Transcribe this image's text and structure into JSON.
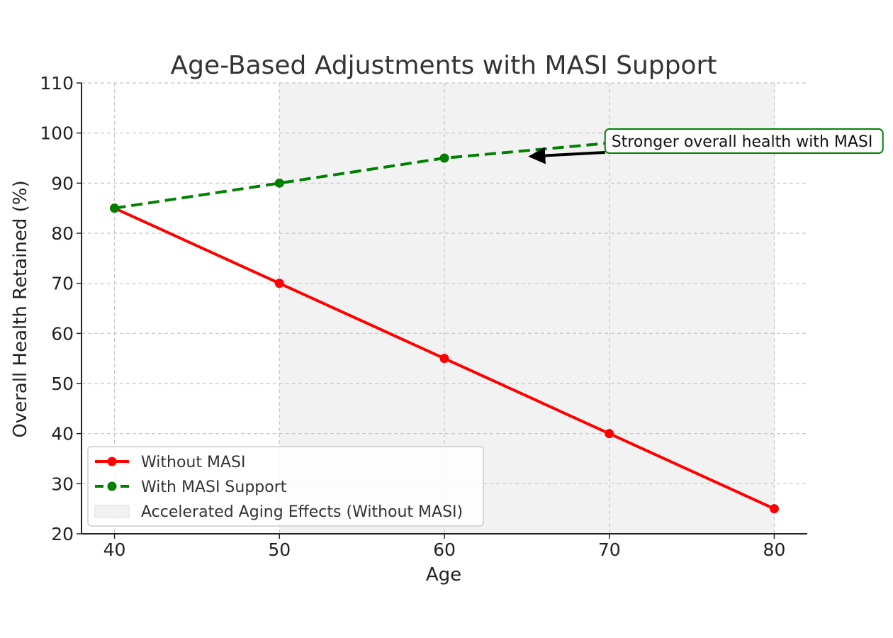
{
  "chart_data": {
    "type": "line",
    "title": "Age-Based Adjustments with MASI Support",
    "xlabel": "Age",
    "ylabel": "Overall Health Retained (%)",
    "xlim": [
      38,
      82
    ],
    "ylim": [
      20,
      110
    ],
    "x_ticks": [
      40,
      50,
      60,
      70,
      80
    ],
    "y_ticks": [
      20,
      30,
      40,
      50,
      60,
      70,
      80,
      90,
      100,
      110
    ],
    "grid": true,
    "legend_position": "lower-left",
    "shaded_region": {
      "label": "Accelerated Aging Effects (Without MASI)",
      "x_start": 50,
      "x_end": 80,
      "color": "#f2f2f2"
    },
    "series": [
      {
        "name": "Without MASI",
        "x": [
          40,
          50,
          60,
          70,
          80
        ],
        "values": [
          85,
          70,
          55,
          40,
          25
        ],
        "color": "#ff0000",
        "style": "solid",
        "marker": "circle"
      },
      {
        "name": "With MASI Support",
        "x": [
          40,
          50,
          60,
          70
        ],
        "values": [
          85,
          90,
          95,
          98
        ],
        "color": "#008000",
        "style": "dashed",
        "marker": "circle"
      }
    ],
    "annotation": {
      "text": "Stronger overall health with MASI",
      "target": {
        "x": 65,
        "y": 95.2
      },
      "box_anchor": {
        "x": 70,
        "y": 97.4
      },
      "box_color": "#008000"
    }
  }
}
